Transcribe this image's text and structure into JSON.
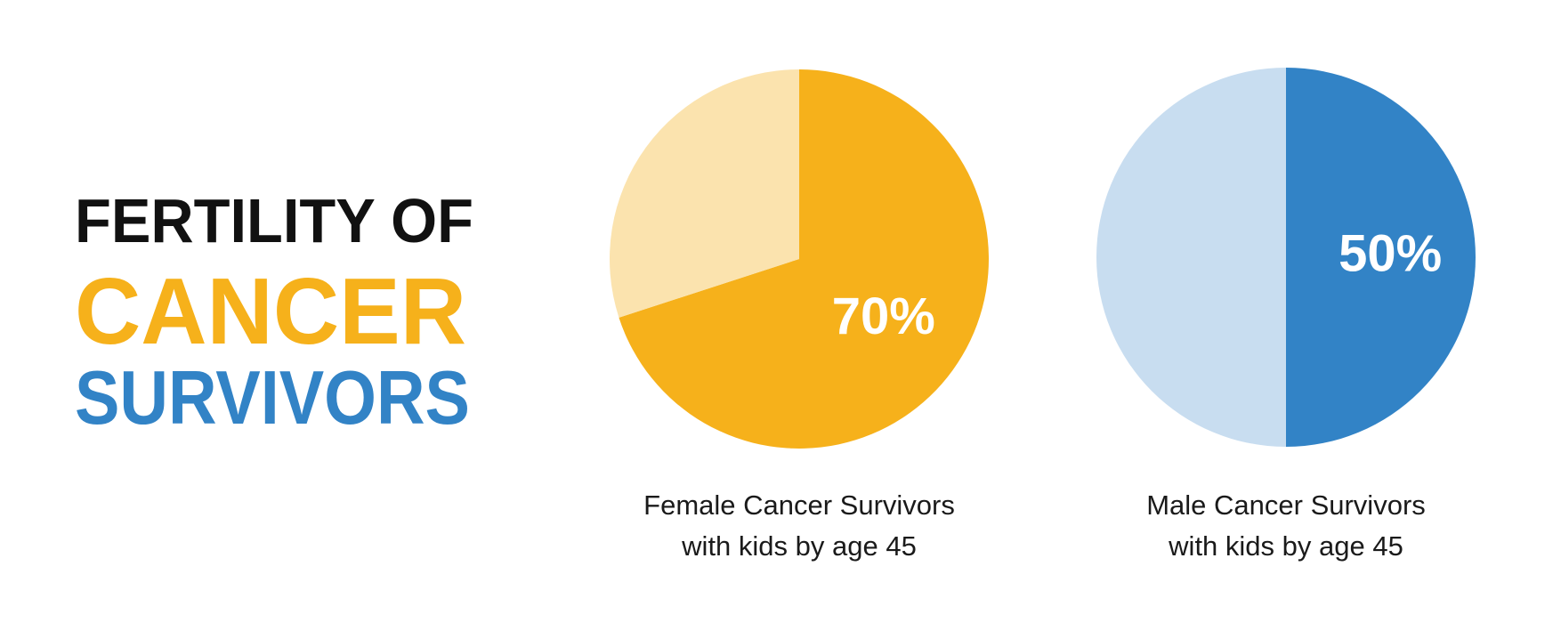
{
  "heading": [
    {
      "text": "FERTILITY OF",
      "color": "#111111"
    },
    {
      "text": "CANCER",
      "color": "#f6b11b"
    },
    {
      "text": "SURVIVORS",
      "color": "#3283c6"
    }
  ],
  "chart_data": [
    {
      "type": "pie",
      "values": [
        70,
        30
      ],
      "value_labels": [
        "70%",
        null
      ],
      "colors": [
        "#f6b11b",
        "#fbe3ae"
      ],
      "caption": [
        "Female Cancer Survivors",
        "with kids by age 45"
      ]
    },
    {
      "type": "pie",
      "values": [
        50,
        50
      ],
      "value_labels": [
        "50%",
        null
      ],
      "colors": [
        "#3283c6",
        "#c8ddf0"
      ],
      "caption": [
        "Male Cancer Survivors",
        "with kids by age 45"
      ]
    }
  ]
}
